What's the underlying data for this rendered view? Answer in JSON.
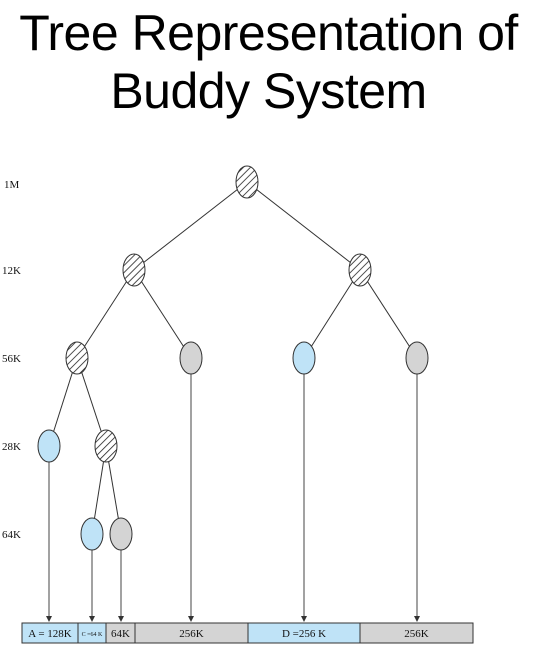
{
  "title": {
    "line1": "Tree Representation of",
    "line2": "Buddy System"
  },
  "levels": [
    "1M",
    "12K",
    "56K",
    "28K",
    "64K"
  ],
  "blocks": [
    {
      "label": "A = 128K",
      "state": "allocated"
    },
    {
      "label": "C =64 K",
      "state": "allocated"
    },
    {
      "label": "64K",
      "state": "free"
    },
    {
      "label": "256K",
      "state": "free"
    },
    {
      "label": "D =256 K",
      "state": "allocated"
    },
    {
      "label": "256K",
      "state": "free"
    }
  ],
  "colors": {
    "allocated": "#bfe3f7",
    "free": "#d4d4d4",
    "split": "#ffffff",
    "line": "#333333"
  }
}
